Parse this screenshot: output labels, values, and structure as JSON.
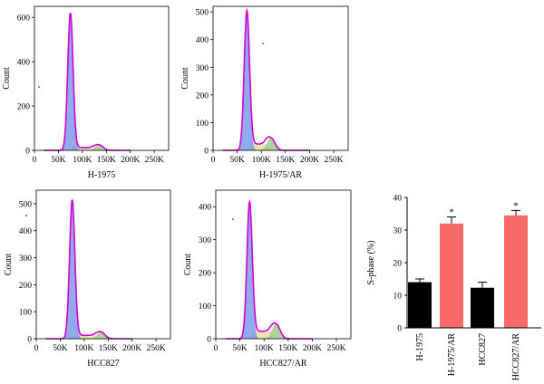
{
  "chart_data": [
    {
      "type": "histogram",
      "title": "H-1975",
      "xlabel": "H-1975",
      "ylabel": "Count",
      "xlim": [
        0,
        280000
      ],
      "ylim": [
        0,
        650
      ],
      "xticks": [
        "0",
        "50K",
        "100K",
        "150K",
        "200K",
        "250K"
      ],
      "yticks": [
        "0",
        "200",
        "400",
        "600"
      ],
      "g1_peak": {
        "x": 75000,
        "count": 620
      },
      "g2_peak": {
        "x": 135000,
        "count": 25
      },
      "colors": {
        "g1": "#7d9bea",
        "s": "#e8e0a0",
        "g2": "#9dcc8a",
        "fit": "#d400d4"
      }
    },
    {
      "type": "histogram",
      "title": "H-1975/AR",
      "xlabel": "H-1975/AR",
      "ylabel": "Count",
      "xlim": [
        0,
        280000
      ],
      "ylim": [
        0,
        520
      ],
      "xticks": [
        "0",
        "50K",
        "100K",
        "150K",
        "200K",
        "250K"
      ],
      "yticks": [
        "0",
        "100",
        "200",
        "300",
        "400",
        "500"
      ],
      "g1_peak": {
        "x": 70000,
        "count": 505
      },
      "g2_peak": {
        "x": 120000,
        "count": 45
      },
      "colors": {
        "g1": "#7d9bea",
        "s": "#e8e0a0",
        "g2": "#9dcc8a",
        "fit": "#d400d4"
      }
    },
    {
      "type": "histogram",
      "title": "HCC827",
      "xlabel": "HCC827",
      "ylabel": "Count",
      "xlim": [
        0,
        280000
      ],
      "ylim": [
        0,
        550
      ],
      "xticks": [
        "0",
        "50K",
        "100K",
        "150K",
        "200K",
        "250K"
      ],
      "yticks": [
        "0",
        "100",
        "200",
        "300",
        "400",
        "500"
      ],
      "g1_peak": {
        "x": 75000,
        "count": 515
      },
      "g2_peak": {
        "x": 135000,
        "count": 25
      },
      "colors": {
        "g1": "#7d9bea",
        "s": "#e8e0a0",
        "g2": "#9dcc8a",
        "fit": "#d400d4"
      }
    },
    {
      "type": "histogram",
      "title": "HCC827/AR",
      "xlabel": "HCC827/AR",
      "ylabel": "Count",
      "xlim": [
        0,
        280000
      ],
      "ylim": [
        0,
        450
      ],
      "xticks": [
        "0",
        "50K",
        "100K",
        "150K",
        "200K",
        "250K"
      ],
      "yticks": [
        "0",
        "100",
        "200",
        "300",
        "400"
      ],
      "g1_peak": {
        "x": 70000,
        "count": 415
      },
      "g2_peak": {
        "x": 125000,
        "count": 45
      },
      "colors": {
        "g1": "#7d9bea",
        "s": "#e8e0a0",
        "g2": "#9dcc8a",
        "fit": "#d400d4"
      }
    },
    {
      "type": "bar",
      "ylabel": "S-phase (%)",
      "ylim": [
        0,
        40
      ],
      "yticks": [
        "0",
        "10",
        "20",
        "30",
        "40"
      ],
      "categories": [
        "H-1975",
        "H-1975/AR",
        "HCC827",
        "HCC827/AR"
      ],
      "values": [
        14,
        32,
        12.3,
        34.5
      ],
      "errors": [
        1,
        2,
        1.7,
        1.5
      ],
      "significance": [
        "",
        "*",
        "",
        "*"
      ],
      "colors": [
        "#000000",
        "#f96a6a",
        "#000000",
        "#f96a6a"
      ]
    }
  ]
}
